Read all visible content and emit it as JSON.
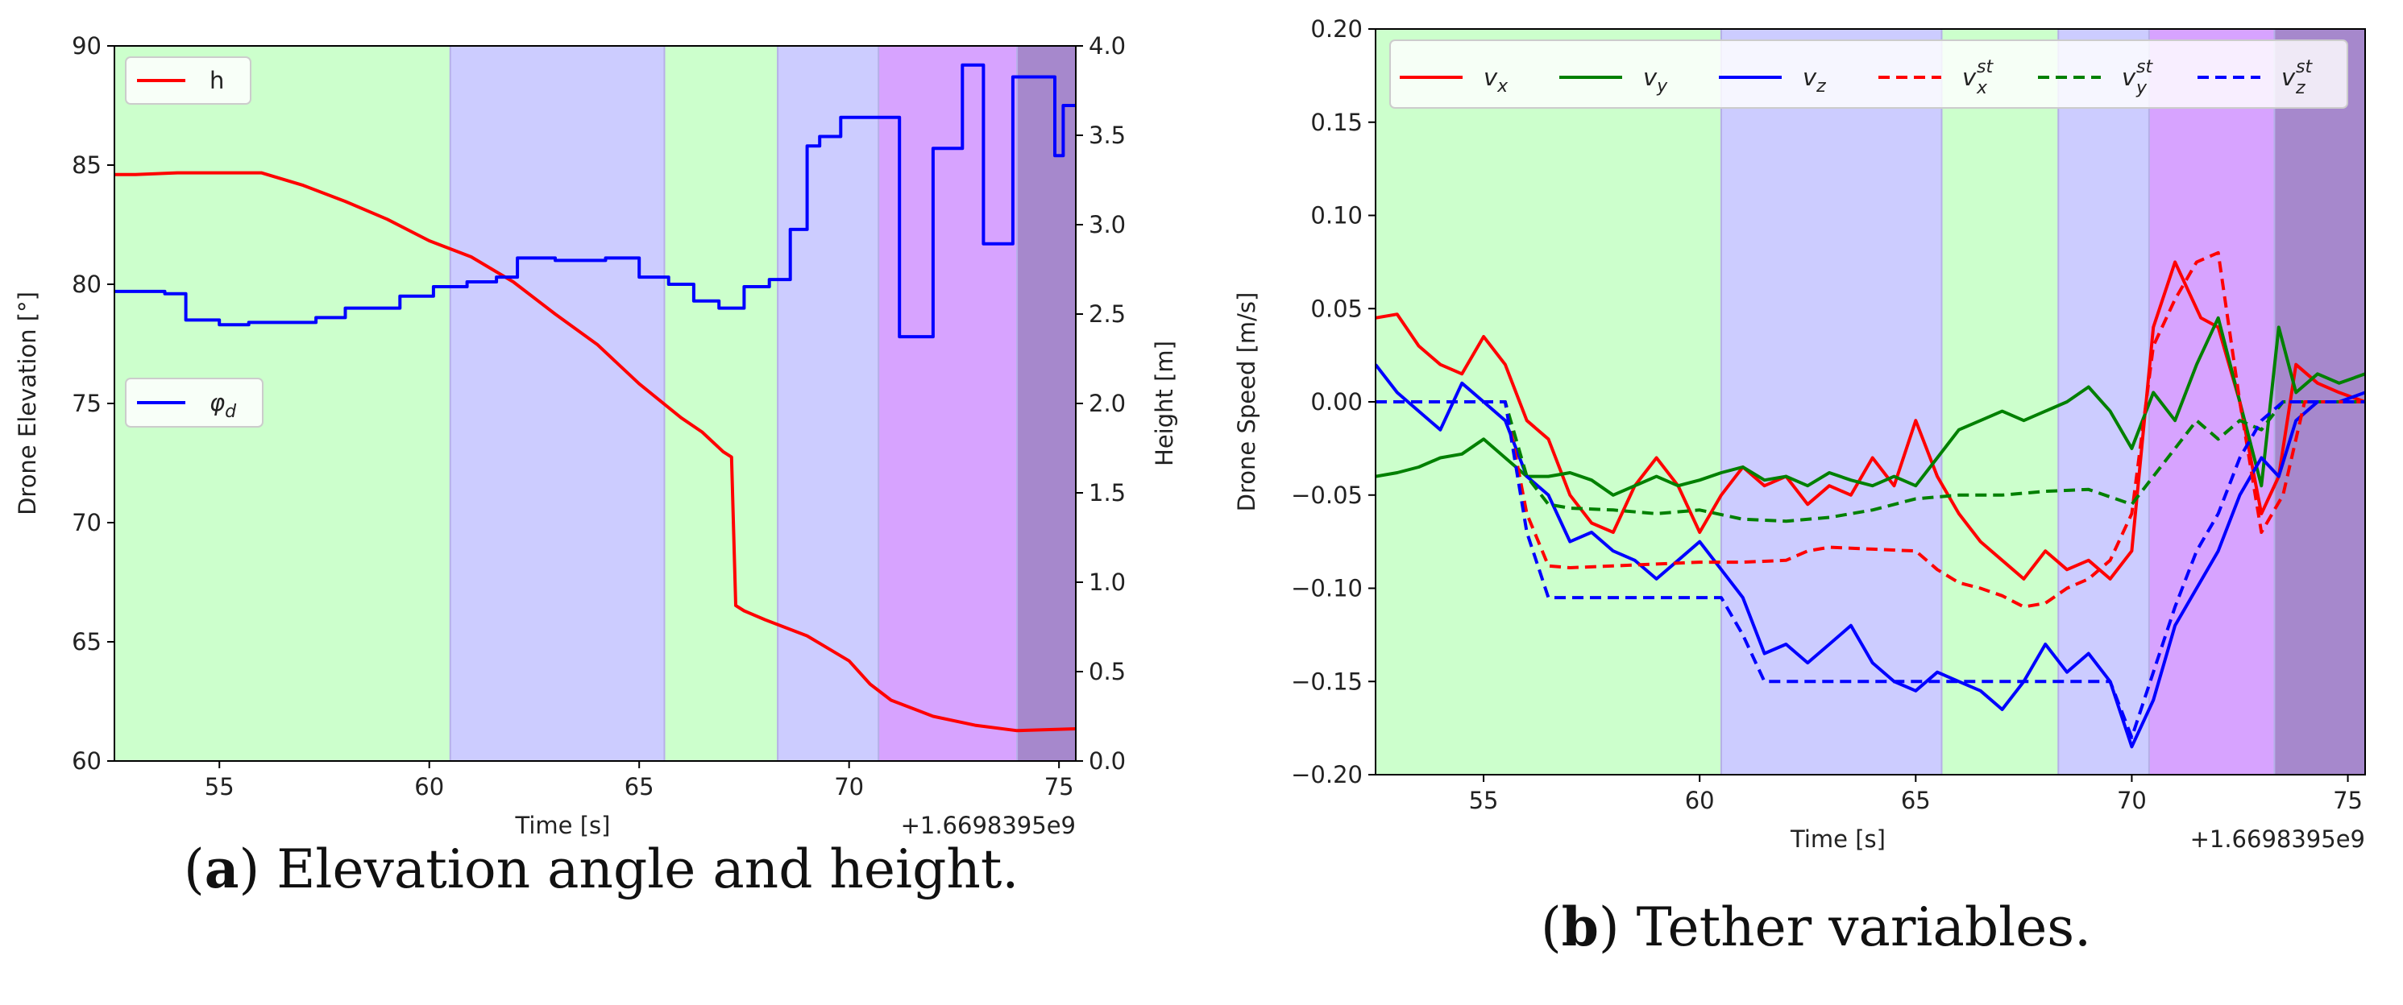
{
  "colors": {
    "green_band": "#ccffcc",
    "blue_band": "#ccccff",
    "magenta_band": "#d7a3ff",
    "purple_band": "#a688cc",
    "red": "#ff0000",
    "green": "#008000",
    "blue": "#0000ff"
  },
  "captions": {
    "a_letter": "a",
    "a_text": "Elevation angle and height.",
    "b_letter": "b",
    "b_text": "Tether variables."
  },
  "chart_data": [
    {
      "id": "a",
      "type": "line",
      "xlabel": "Time [s]",
      "ylabel": "Drone Elevation [°]",
      "ylabel_right": "Height [m]",
      "x_offset_label": "+1.6698395e9",
      "xlim": [
        52.5,
        75.4
      ],
      "ylim": [
        60,
        90
      ],
      "ylim_right": [
        0.0,
        4.0
      ],
      "xticks": [
        "55",
        "60",
        "65",
        "70",
        "75"
      ],
      "yticks": [
        "60",
        "65",
        "70",
        "75",
        "80",
        "85",
        "90"
      ],
      "yticks_right": [
        "0.0",
        "0.5",
        "1.0",
        "1.5",
        "2.0",
        "2.5",
        "3.0",
        "3.5",
        "4.0"
      ],
      "bands": [
        {
          "from": 52.5,
          "to": 60.5,
          "color": "green"
        },
        {
          "from": 60.5,
          "to": 65.6,
          "color": "blue"
        },
        {
          "from": 65.6,
          "to": 68.3,
          "color": "green"
        },
        {
          "from": 68.3,
          "to": 70.7,
          "color": "blue"
        },
        {
          "from": 70.7,
          "to": 74.0,
          "color": "magenta"
        },
        {
          "from": 74.0,
          "to": 75.4,
          "color": "purple"
        }
      ],
      "legends": [
        {
          "label": "h",
          "color": "red",
          "placement": "upper-left"
        },
        {
          "label": "φ_d",
          "color": "blue",
          "placement": "center-left"
        }
      ],
      "series": [
        {
          "name": "h",
          "axis": "right",
          "color": "red",
          "x": [
            52.5,
            53.0,
            54.0,
            55.0,
            56.0,
            57.0,
            58.0,
            59.0,
            60.0,
            61.0,
            62.0,
            63.0,
            64.0,
            65.0,
            66.0,
            66.5,
            67.0,
            67.2,
            67.3,
            67.5,
            68.0,
            69.0,
            70.0,
            70.5,
            71.0,
            72.0,
            73.0,
            74.0,
            75.4
          ],
          "y": [
            3.28,
            3.28,
            3.29,
            3.29,
            3.29,
            3.22,
            3.13,
            3.03,
            2.91,
            2.82,
            2.68,
            2.5,
            2.33,
            2.11,
            1.92,
            1.84,
            1.73,
            1.7,
            0.87,
            0.84,
            0.79,
            0.7,
            0.56,
            0.43,
            0.34,
            0.25,
            0.2,
            0.17,
            0.18
          ]
        },
        {
          "name": "φ_d",
          "axis": "left",
          "color": "blue",
          "step": true,
          "x": [
            52.5,
            53.7,
            54.2,
            55.0,
            55.7,
            57.3,
            58.0,
            59.3,
            60.1,
            60.9,
            61.6,
            62.1,
            63.0,
            64.2,
            65.0,
            65.7,
            66.3,
            66.9,
            67.5,
            68.1,
            68.6,
            69.0,
            69.3,
            69.8,
            70.5,
            71.2,
            71.4,
            72.0,
            72.4,
            72.7,
            73.0,
            73.2,
            73.9,
            74.4,
            74.9,
            75.1,
            75.4
          ],
          "y": [
            79.7,
            79.6,
            78.5,
            78.3,
            78.4,
            78.6,
            79.0,
            79.5,
            79.9,
            80.1,
            80.3,
            81.1,
            81.0,
            81.1,
            80.3,
            80.0,
            79.3,
            79.0,
            79.9,
            80.2,
            82.3,
            85.8,
            86.2,
            87.0,
            87.0,
            77.8,
            77.8,
            85.7,
            85.7,
            89.2,
            89.2,
            81.7,
            88.7,
            88.7,
            85.4,
            87.5,
            87.5
          ]
        }
      ]
    },
    {
      "id": "b",
      "type": "line",
      "xlabel": "Time [s]",
      "ylabel": "Drone Speed [m/s]",
      "x_offset_label": "+1.6698395e9",
      "xlim": [
        52.5,
        75.4
      ],
      "ylim": [
        -0.2,
        0.2
      ],
      "xticks": [
        "55",
        "60",
        "65",
        "70",
        "75"
      ],
      "yticks": [
        "−0.20",
        "−0.15",
        "−0.10",
        "−0.05",
        "0.00",
        "0.05",
        "0.10",
        "0.15",
        "0.20"
      ],
      "bands": [
        {
          "from": 52.5,
          "to": 60.5,
          "color": "green"
        },
        {
          "from": 60.5,
          "to": 65.6,
          "color": "blue"
        },
        {
          "from": 65.6,
          "to": 68.3,
          "color": "green"
        },
        {
          "from": 68.3,
          "to": 70.4,
          "color": "blue"
        },
        {
          "from": 70.4,
          "to": 73.3,
          "color": "magenta"
        },
        {
          "from": 73.3,
          "to": 75.4,
          "color": "purple"
        }
      ],
      "legend": {
        "placement": "top",
        "columns": 6
      },
      "series": [
        {
          "name": "v",
          "sub": "x",
          "sup": "",
          "color": "red",
          "dash": false,
          "x": [
            52.5,
            53.0,
            53.5,
            54.0,
            54.5,
            55.0,
            55.5,
            56.0,
            56.5,
            57.0,
            57.5,
            58.0,
            58.5,
            59.0,
            59.5,
            60.0,
            60.5,
            61.0,
            61.5,
            62.0,
            62.5,
            63.0,
            63.5,
            64.0,
            64.5,
            65.0,
            65.5,
            66.0,
            66.5,
            67.0,
            67.5,
            68.0,
            68.5,
            69.0,
            69.5,
            70.0,
            70.5,
            71.0,
            71.3,
            71.6,
            72.0,
            72.5,
            73.0,
            73.4,
            73.8,
            74.3,
            74.8,
            75.4
          ],
          "y": [
            0.045,
            0.047,
            0.03,
            0.02,
            0.015,
            0.035,
            0.02,
            -0.01,
            -0.02,
            -0.05,
            -0.065,
            -0.07,
            -0.045,
            -0.03,
            -0.045,
            -0.07,
            -0.05,
            -0.035,
            -0.045,
            -0.04,
            -0.055,
            -0.045,
            -0.05,
            -0.03,
            -0.045,
            -0.01,
            -0.04,
            -0.06,
            -0.075,
            -0.085,
            -0.095,
            -0.08,
            -0.09,
            -0.085,
            -0.095,
            -0.08,
            0.04,
            0.075,
            0.06,
            0.045,
            0.04,
            0.0,
            -0.06,
            -0.04,
            0.02,
            0.01,
            0.005,
            0.0
          ]
        },
        {
          "name": "v",
          "sub": "y",
          "sup": "",
          "color": "green",
          "dash": false,
          "x": [
            52.5,
            53.0,
            53.5,
            54.0,
            54.5,
            55.0,
            55.5,
            56.0,
            56.5,
            57.0,
            57.5,
            58.0,
            58.5,
            59.0,
            59.5,
            60.0,
            60.5,
            61.0,
            61.5,
            62.0,
            62.5,
            63.0,
            63.5,
            64.0,
            64.5,
            65.0,
            65.5,
            66.0,
            66.5,
            67.0,
            67.5,
            68.0,
            68.5,
            69.0,
            69.5,
            70.0,
            70.5,
            71.0,
            71.5,
            72.0,
            72.5,
            73.0,
            73.4,
            73.8,
            74.3,
            74.8,
            75.4
          ],
          "y": [
            -0.04,
            -0.038,
            -0.035,
            -0.03,
            -0.028,
            -0.02,
            -0.03,
            -0.04,
            -0.04,
            -0.038,
            -0.042,
            -0.05,
            -0.045,
            -0.04,
            -0.045,
            -0.042,
            -0.038,
            -0.035,
            -0.042,
            -0.04,
            -0.045,
            -0.038,
            -0.042,
            -0.045,
            -0.04,
            -0.045,
            -0.03,
            -0.015,
            -0.01,
            -0.005,
            -0.01,
            -0.005,
            0.0,
            0.008,
            -0.005,
            -0.025,
            0.005,
            -0.01,
            0.02,
            0.045,
            0.0,
            -0.045,
            0.04,
            0.005,
            0.015,
            0.01,
            0.015
          ]
        },
        {
          "name": "v",
          "sub": "z",
          "sup": "",
          "color": "blue",
          "dash": false,
          "x": [
            52.5,
            53.0,
            53.5,
            54.0,
            54.5,
            55.0,
            55.5,
            56.0,
            56.5,
            57.0,
            57.5,
            58.0,
            58.5,
            59.0,
            59.5,
            60.0,
            60.5,
            61.0,
            61.5,
            62.0,
            62.5,
            63.0,
            63.5,
            64.0,
            64.5,
            65.0,
            65.5,
            66.0,
            66.5,
            67.0,
            67.5,
            68.0,
            68.5,
            69.0,
            69.5,
            70.0,
            70.5,
            71.0,
            71.5,
            72.0,
            72.5,
            73.0,
            73.4,
            73.8,
            74.3,
            74.8,
            75.4
          ],
          "y": [
            0.02,
            0.005,
            -0.005,
            -0.015,
            0.01,
            0.0,
            -0.01,
            -0.04,
            -0.05,
            -0.075,
            -0.07,
            -0.08,
            -0.085,
            -0.095,
            -0.085,
            -0.075,
            -0.09,
            -0.105,
            -0.135,
            -0.13,
            -0.14,
            -0.13,
            -0.12,
            -0.14,
            -0.15,
            -0.155,
            -0.145,
            -0.15,
            -0.155,
            -0.165,
            -0.15,
            -0.13,
            -0.145,
            -0.135,
            -0.15,
            -0.185,
            -0.16,
            -0.12,
            -0.1,
            -0.08,
            -0.05,
            -0.03,
            -0.04,
            -0.01,
            0.0,
            0.0,
            0.005
          ]
        },
        {
          "name": "v",
          "sub": "x",
          "sup": "st",
          "color": "red",
          "dash": true,
          "x": [
            52.5,
            55.5,
            56.0,
            56.5,
            57.0,
            58.0,
            59.0,
            60.0,
            61.0,
            62.0,
            62.5,
            63.0,
            64.0,
            65.0,
            65.5,
            66.0,
            66.5,
            67.0,
            67.5,
            68.0,
            68.5,
            69.0,
            69.5,
            70.0,
            70.5,
            71.0,
            71.5,
            72.0,
            72.5,
            73.0,
            73.5,
            74.0,
            75.4
          ],
          "y": [
            0.0,
            0.0,
            -0.06,
            -0.088,
            -0.089,
            -0.088,
            -0.087,
            -0.086,
            -0.086,
            -0.085,
            -0.08,
            -0.078,
            -0.079,
            -0.08,
            -0.09,
            -0.097,
            -0.1,
            -0.104,
            -0.11,
            -0.108,
            -0.1,
            -0.095,
            -0.085,
            -0.06,
            0.03,
            0.055,
            0.075,
            0.08,
            0.0,
            -0.07,
            -0.05,
            0.0,
            0.0
          ]
        },
        {
          "name": "v",
          "sub": "y",
          "sup": "st",
          "color": "green",
          "dash": true,
          "x": [
            52.5,
            55.5,
            56.0,
            56.5,
            57.0,
            58.0,
            59.0,
            60.0,
            61.0,
            62.0,
            63.0,
            64.0,
            65.0,
            66.0,
            67.0,
            68.0,
            69.0,
            70.0,
            70.5,
            71.0,
            71.5,
            72.0,
            72.5,
            73.0,
            73.5,
            74.0,
            75.4
          ],
          "y": [
            0.0,
            0.0,
            -0.04,
            -0.055,
            -0.057,
            -0.058,
            -0.06,
            -0.058,
            -0.063,
            -0.064,
            -0.062,
            -0.058,
            -0.052,
            -0.05,
            -0.05,
            -0.048,
            -0.047,
            -0.055,
            -0.04,
            -0.025,
            -0.01,
            -0.02,
            -0.01,
            -0.015,
            0.0,
            0.0,
            0.0
          ]
        },
        {
          "name": "v",
          "sub": "z",
          "sup": "st",
          "color": "blue",
          "dash": true,
          "x": [
            52.5,
            55.5,
            56.0,
            56.5,
            57.0,
            58.0,
            59.0,
            60.0,
            60.5,
            61.0,
            61.5,
            62.0,
            63.0,
            64.0,
            65.0,
            66.0,
            67.0,
            68.0,
            69.0,
            69.5,
            70.0,
            70.5,
            71.0,
            71.5,
            72.0,
            72.5,
            73.0,
            73.5,
            74.0,
            75.4
          ],
          "y": [
            0.0,
            0.0,
            -0.07,
            -0.105,
            -0.105,
            -0.105,
            -0.105,
            -0.105,
            -0.105,
            -0.125,
            -0.15,
            -0.15,
            -0.15,
            -0.15,
            -0.15,
            -0.15,
            -0.15,
            -0.15,
            -0.15,
            -0.15,
            -0.18,
            -0.145,
            -0.11,
            -0.08,
            -0.06,
            -0.03,
            -0.01,
            0.0,
            0.0,
            0.0
          ]
        }
      ]
    }
  ]
}
